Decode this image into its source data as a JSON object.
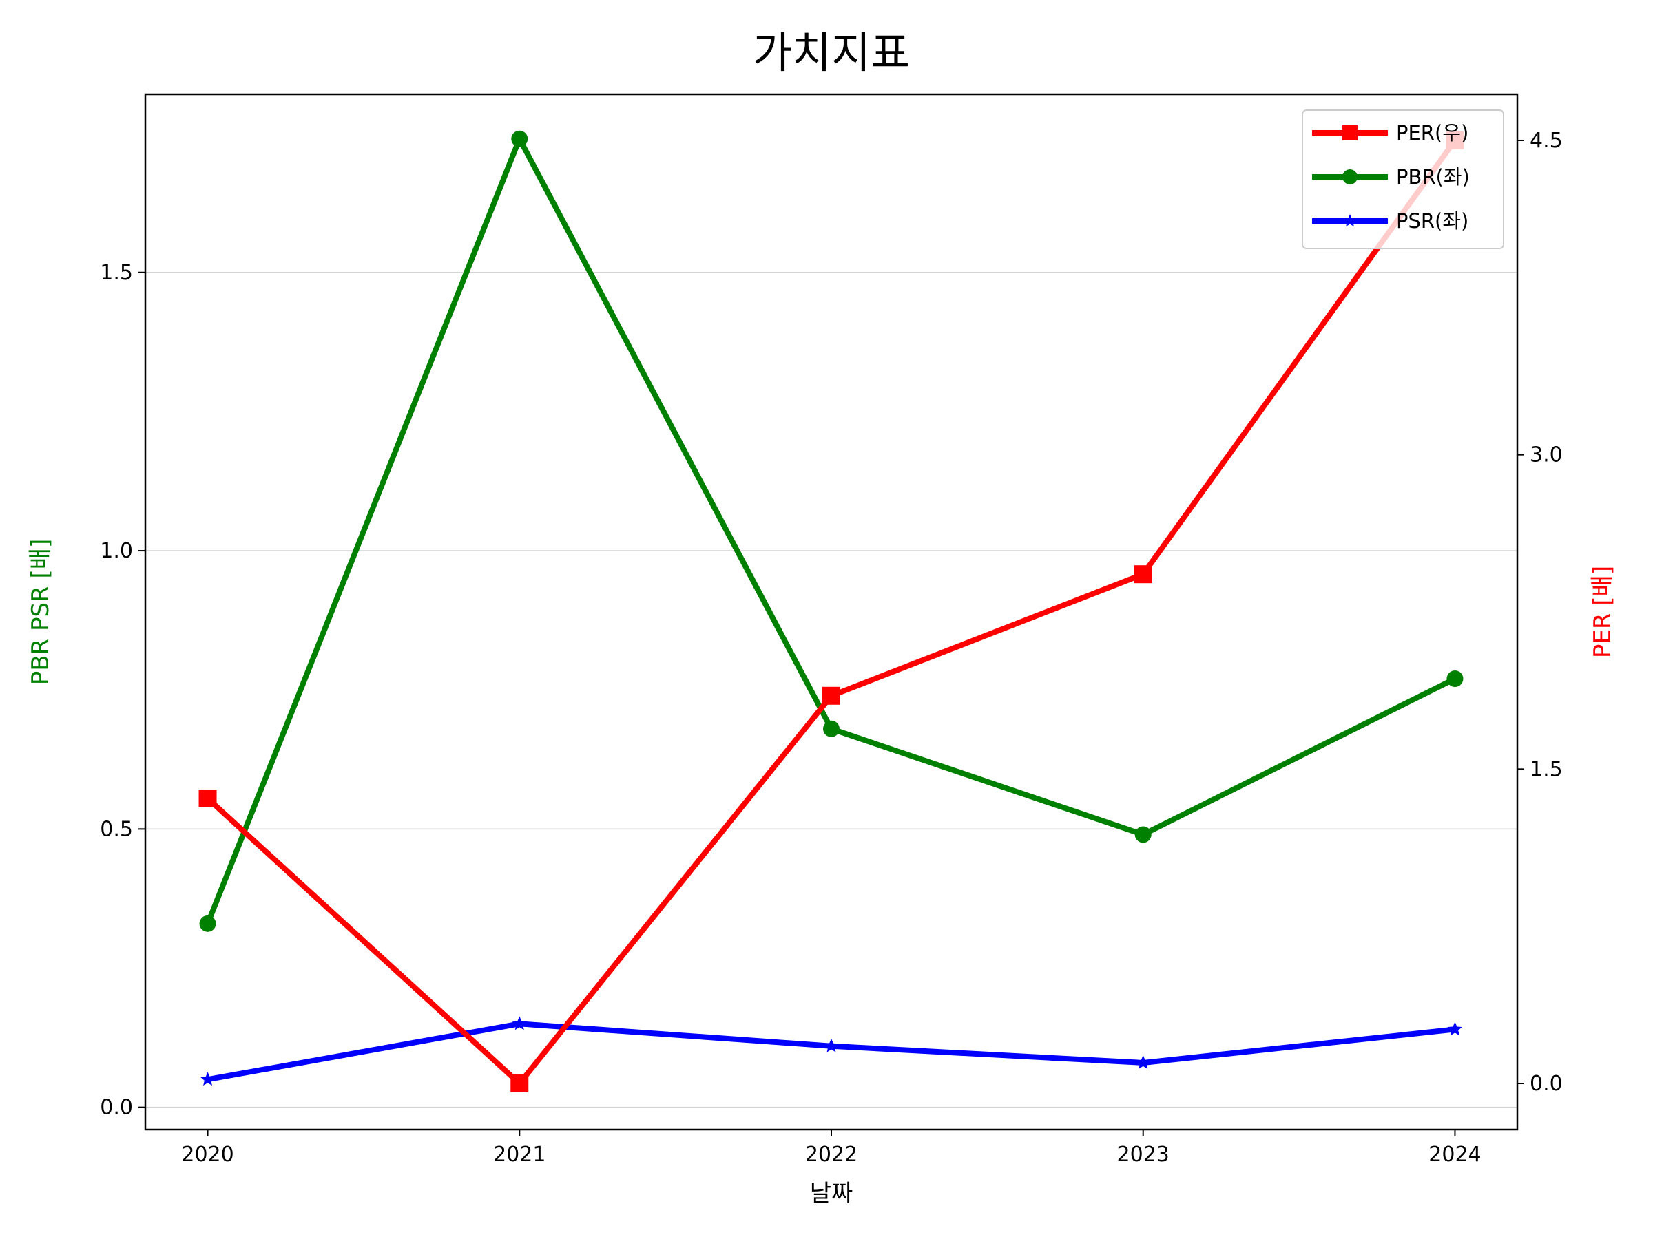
{
  "chart_data": {
    "type": "line",
    "title": "가치지표",
    "xlabel": "날짜",
    "ylabel_left": "PBR PSR [배]",
    "ylabel_right": "PER [배]",
    "categories": [
      "2020",
      "2021",
      "2022",
      "2023",
      "2024"
    ],
    "ylim_left": [
      -0.04,
      1.82
    ],
    "yticks_left": [
      0.0,
      0.5,
      1.0,
      1.5
    ],
    "yticks_left_labels": [
      "0.0",
      "0.5",
      "1.0",
      "1.5"
    ],
    "ylim_right": [
      -0.22,
      4.72
    ],
    "yticks_right": [
      0.0,
      1.5,
      3.0,
      4.5
    ],
    "yticks_right_labels": [
      "0.0",
      "1.5",
      "3.0",
      "4.5"
    ],
    "grid": "horizontal (left axis)",
    "legend_position": "top-right",
    "series": [
      {
        "name": "PER(우)",
        "axis": "right",
        "color": "#ff0000",
        "marker": "square",
        "values": [
          1.36,
          0.0,
          1.85,
          2.43,
          4.5
        ]
      },
      {
        "name": "PBR(좌)",
        "axis": "left",
        "color": "#008000",
        "marker": "circle",
        "values": [
          0.33,
          1.74,
          0.68,
          0.49,
          0.77
        ]
      },
      {
        "name": "PSR(좌)",
        "axis": "left",
        "color": "#0000ff",
        "marker": "star",
        "values": [
          0.05,
          0.15,
          0.11,
          0.08,
          0.14
        ]
      }
    ]
  }
}
